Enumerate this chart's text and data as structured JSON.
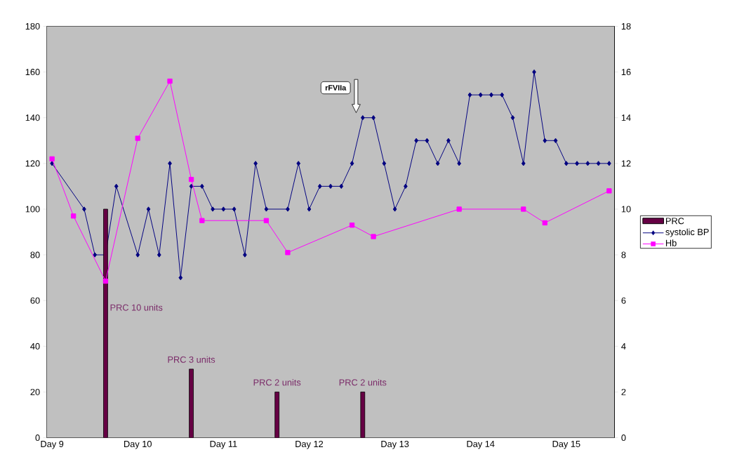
{
  "chart_data": {
    "type": "line",
    "categories": [
      "Day 9",
      null,
      null,
      null,
      null,
      null,
      null,
      null,
      "Day 10",
      null,
      null,
      null,
      null,
      null,
      null,
      null,
      "Day 11",
      null,
      null,
      null,
      null,
      null,
      null,
      null,
      "Day 12",
      null,
      null,
      null,
      null,
      null,
      null,
      null,
      "Day 13",
      null,
      null,
      null,
      null,
      null,
      null,
      null,
      "Day 14",
      null,
      null,
      null,
      null,
      null,
      null,
      null,
      "Day 15",
      null,
      null,
      null,
      null
    ],
    "ylim": [
      0,
      180
    ],
    "yticks": [
      0,
      20,
      40,
      60,
      80,
      100,
      120,
      140,
      160,
      180
    ],
    "y2lim": [
      0,
      18
    ],
    "y2ticks": [
      0,
      2,
      4,
      6,
      8,
      10,
      12,
      14,
      16,
      18
    ],
    "legend": "right",
    "grid": false,
    "series": [
      {
        "name": "PRC",
        "type": "bar",
        "axis": "y2",
        "color": "#660044",
        "values": [
          null,
          null,
          null,
          null,
          null,
          10,
          null,
          null,
          null,
          null,
          null,
          null,
          null,
          3,
          null,
          null,
          null,
          null,
          null,
          null,
          null,
          2,
          null,
          null,
          null,
          null,
          null,
          null,
          null,
          2,
          null,
          null,
          null,
          null,
          null,
          null,
          null,
          null,
          null,
          null,
          null,
          null,
          null,
          null,
          null,
          null,
          null,
          null,
          null,
          null,
          null,
          null,
          null
        ]
      },
      {
        "name": "systolic BP",
        "marker": "diamond",
        "color": "#000080",
        "values": [
          120,
          null,
          null,
          100,
          80,
          80,
          110,
          null,
          80,
          100,
          80,
          120,
          70,
          110,
          110,
          100,
          100,
          100,
          80,
          120,
          100,
          null,
          100,
          120,
          100,
          110,
          110,
          110,
          120,
          140,
          140,
          120,
          100,
          110,
          130,
          130,
          120,
          130,
          120,
          150,
          150,
          150,
          150,
          140,
          120,
          160,
          130,
          130,
          120,
          120,
          120,
          120,
          120
        ]
      },
      {
        "name": "Hb",
        "axis": "y2",
        "marker": "square",
        "color": "#ff00ff",
        "values": [
          12.2,
          null,
          9.7,
          null,
          null,
          6.85,
          null,
          null,
          13.1,
          null,
          null,
          15.6,
          null,
          11.3,
          9.5,
          null,
          null,
          null,
          null,
          null,
          9.5,
          null,
          8.1,
          null,
          null,
          null,
          null,
          null,
          9.3,
          null,
          8.8,
          null,
          null,
          null,
          null,
          null,
          null,
          null,
          10.0,
          null,
          null,
          null,
          null,
          null,
          10.0,
          null,
          9.4,
          null,
          null,
          null,
          null,
          null,
          10.8
        ]
      }
    ],
    "annotations": [
      "PRC 10 units",
      "PRC 3 units",
      "PRC 2 units",
      "PRC 2 units",
      "rFVIIa"
    ]
  }
}
